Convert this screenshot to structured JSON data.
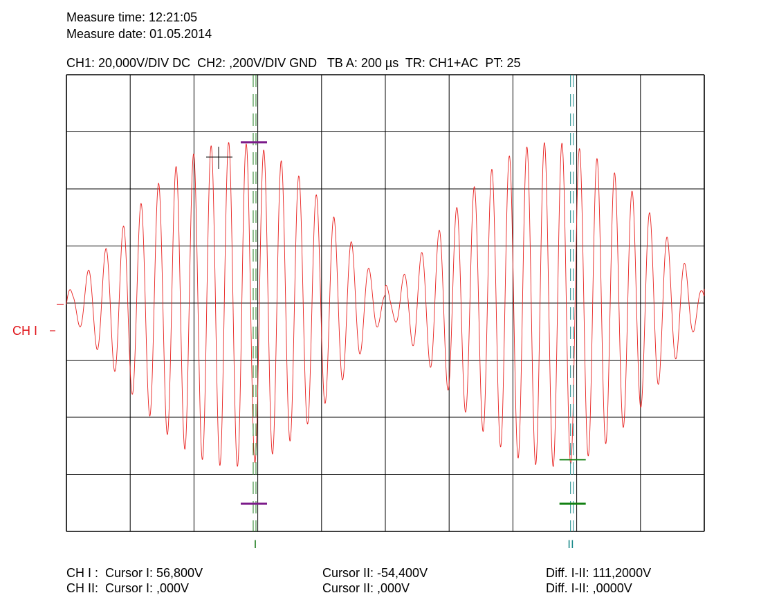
{
  "header": {
    "measure_time_label": "Measure time: ",
    "measure_time": "12:21:05",
    "measure_date_label": "Measure date: ",
    "measure_date": "01.05.2014",
    "settings": "CH1: 20,000V/DIV DC  CH2: ,200V/DIV GND   TB A: 200 µs  TR: CH1+AC  PT: 25"
  },
  "channel_marker": "CH I",
  "cursor_labels": {
    "cursor1": "I",
    "cursor2": "II"
  },
  "readouts": {
    "row1": {
      "label": "CH I :  Cursor I: 56,800V",
      "cursor2": "Cursor II: -54,400V",
      "diff": "Diff. I-II: 111,2000V"
    },
    "row2": {
      "label": "CH II:  Cursor I: ,000V",
      "cursor2": "Cursor II: ,000V",
      "diff": "Diff. I-II: ,0000V"
    }
  },
  "colors": {
    "trace": "#e8201e",
    "grid": "#000000",
    "cursor1": "#1a7a1a",
    "cursor2": "#1a8a8a",
    "cursor1_marker": "#7b1a8a",
    "cursor2_marker": "#128012",
    "channel_label": "#e0141a"
  },
  "chart_data": {
    "type": "line",
    "title": "",
    "xlabel": "",
    "ylabel": "",
    "x_divisions": 10,
    "y_divisions": 8,
    "time_per_div_us": 200,
    "volts_per_div": 20,
    "xlim_us": [
      0,
      2000
    ],
    "ylim_V": [
      -80,
      80
    ],
    "series": [
      {
        "description_points_us_V": [
          [
            0,
            0
          ],
          [
            40,
            8
          ],
          [
            100,
            -3
          ],
          [
            170,
            2
          ],
          [
            240,
            15
          ],
          [
            300,
            -28
          ],
          [
            400,
            40
          ],
          [
            500,
            -50
          ],
          [
            580,
            57
          ],
          [
            640,
            -54
          ],
          [
            720,
            47
          ],
          [
            830,
            25
          ],
          [
            1000,
            0
          ],
          [
            1060,
            5
          ],
          [
            1120,
            -8
          ],
          [
            1200,
            24
          ],
          [
            1300,
            -32
          ],
          [
            1450,
            48
          ],
          [
            1600,
            56
          ],
          [
            1700,
            -54
          ],
          [
            1820,
            48
          ],
          [
            1920,
            24
          ],
          [
            2000,
            0
          ]
        ],
        "oscillation_period_us": 55,
        "beat_period_us": 1000,
        "peak_amplitude_V": 56.8
      }
    ],
    "cursors": {
      "cursor1_time_us": 590,
      "cursor2_time_us": 1585,
      "cursor1_V": 56.8,
      "cursor2_V": -54.4
    },
    "grid": true
  }
}
